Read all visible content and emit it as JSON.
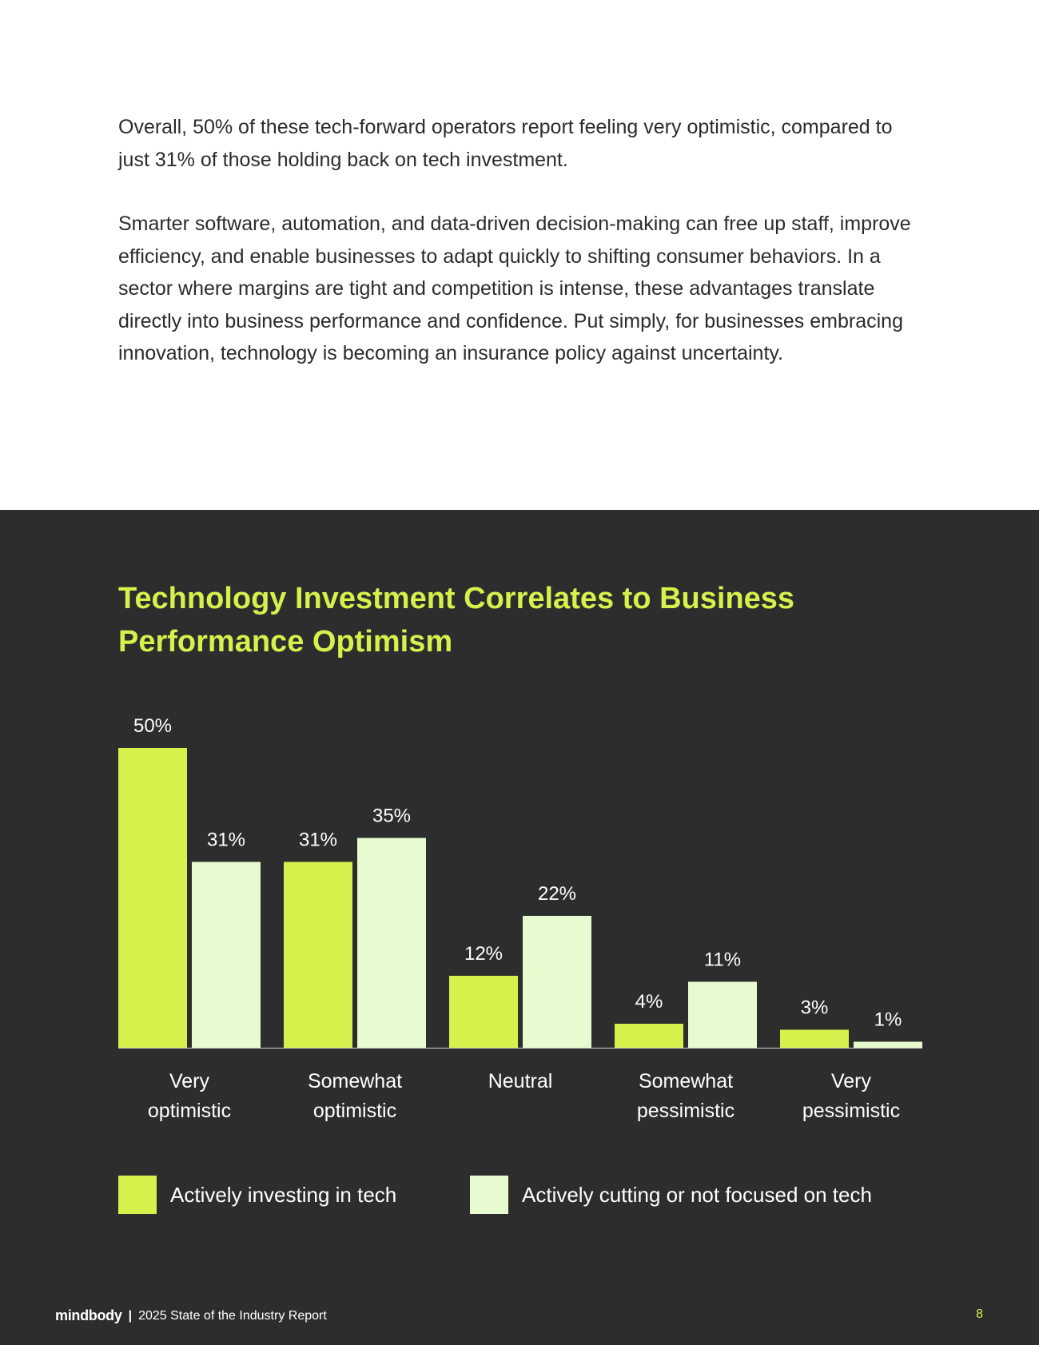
{
  "body": {
    "paragraph1": "Overall, 50% of these tech-forward operators report feeling very optimistic, compared to just 31% of those holding back on tech investment.",
    "paragraph2": "Smarter software, automation, and data-driven decision-making can free up staff, improve efficiency, and enable businesses to adapt quickly to shifting consumer behaviors. In a sector where margins are tight and competition is intense, these advantages translate directly into business performance and confidence. Put simply, for businesses embracing innovation, technology is becoming an insurance policy against uncertainty."
  },
  "chart_data": {
    "type": "bar",
    "title": "Technology Investment Correlates to Business Performance Optimism",
    "categories": [
      [
        "Very",
        "optimistic"
      ],
      [
        "Somewhat",
        "optimistic"
      ],
      [
        "Neutral"
      ],
      [
        "Somewhat",
        "pessimistic"
      ],
      [
        "Very",
        "pessimistic"
      ]
    ],
    "series": [
      {
        "name": "Actively investing in tech",
        "values": [
          50,
          31,
          12,
          4,
          3
        ],
        "labels": [
          "50%",
          "31%",
          "12%",
          "4%",
          "3%"
        ],
        "color": "#d6f04c"
      },
      {
        "name": "Actively cutting or not focused on tech",
        "values": [
          31,
          35,
          22,
          11,
          1
        ],
        "labels": [
          "31%",
          "35%",
          "22%",
          "11%",
          "1%"
        ],
        "color": "#e6fcd0"
      }
    ],
    "ylim": [
      0,
      50
    ],
    "grid": false,
    "legend_position": "bottom"
  },
  "footer": {
    "brand": "mindbody",
    "separator": "|",
    "report": "2025 State of the Industry Report",
    "page_number": "8"
  },
  "colors": {
    "accent": "#d6f04c",
    "light_series": "#e6fcd0",
    "dark_background": "#2d2d2d",
    "body_text": "#2b2b2b"
  }
}
